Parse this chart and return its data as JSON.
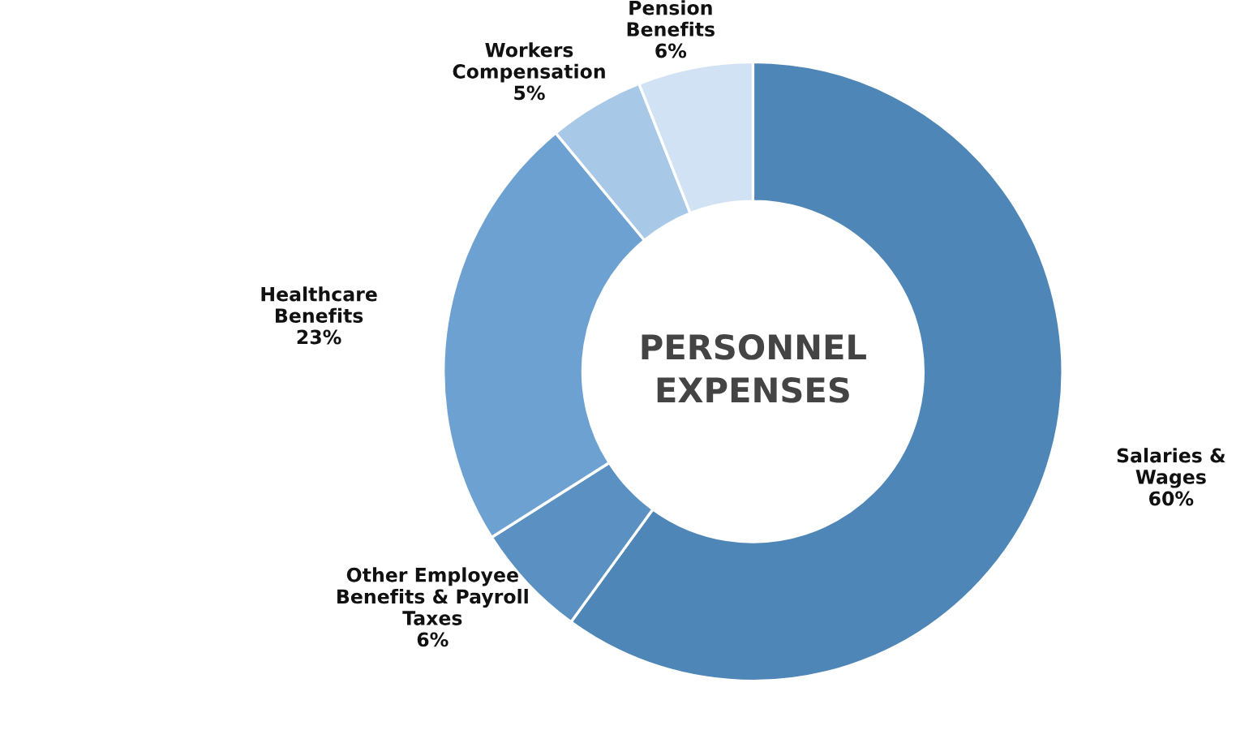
{
  "chart_data": {
    "type": "donut",
    "title": "PERSONNEL\nEXPENSES",
    "categories": [
      "Salaries &\nWages",
      "Other Employee\nBenefits & Payroll\nTaxes",
      "Healthcare\nBenefits",
      "Workers\nCompensation",
      "Pension\nBenefits"
    ],
    "values": [
      60,
      6,
      23,
      5,
      6
    ],
    "value_labels": [
      "60%",
      "6%",
      "23%",
      "5%",
      "6%"
    ],
    "colors": [
      "#4f86b8",
      "#5a90c2",
      "#6da1d2",
      "#a8c8e8",
      "#d0e2f4"
    ]
  }
}
